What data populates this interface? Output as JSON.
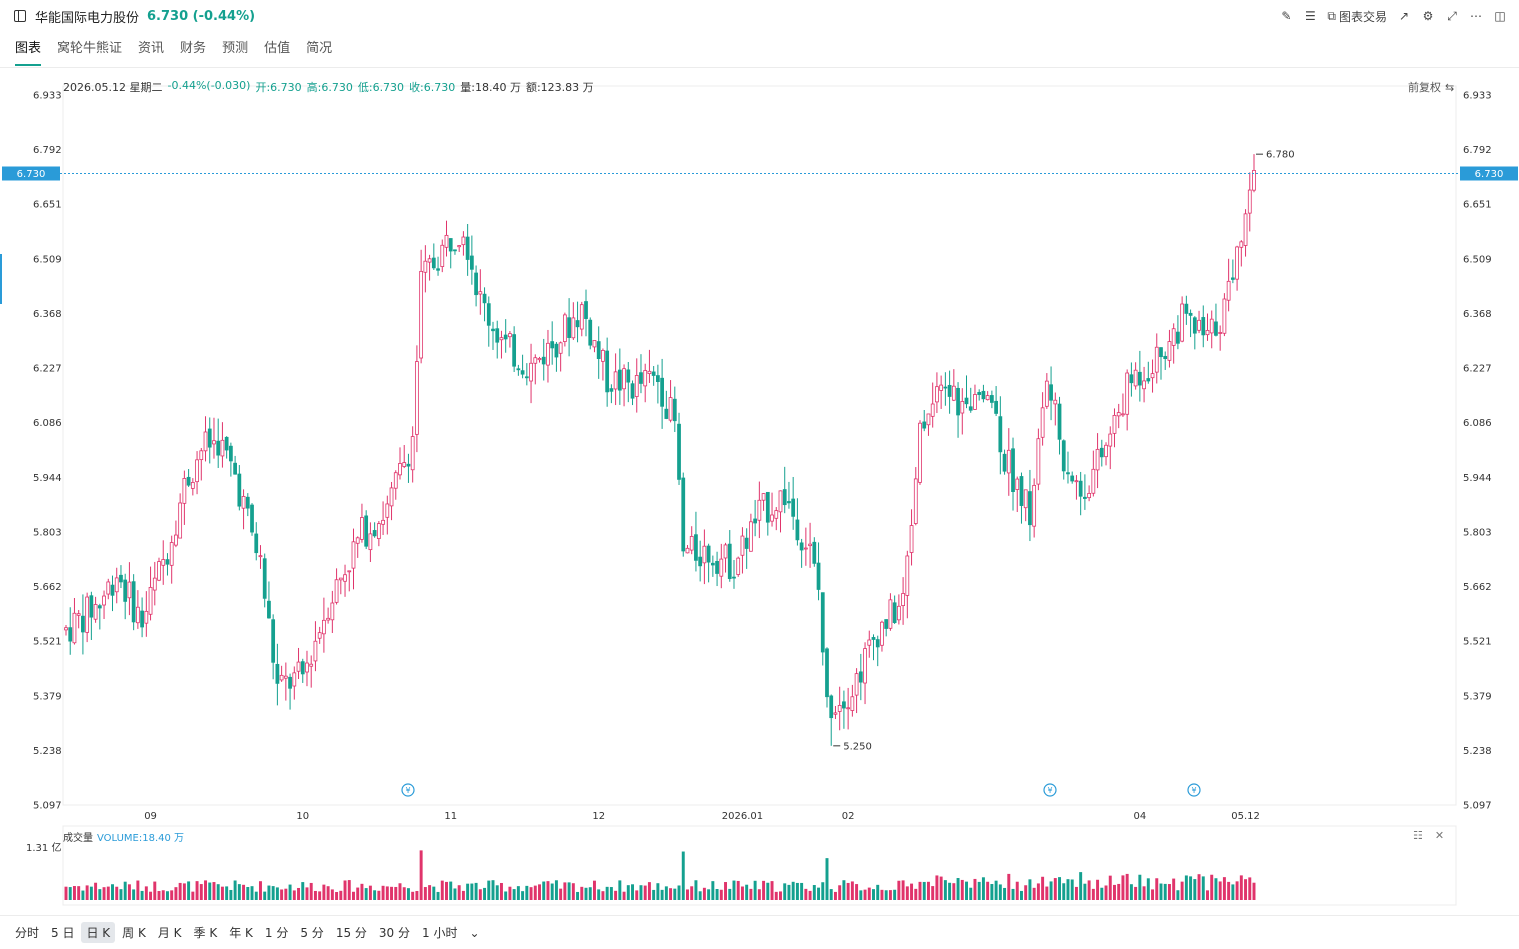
{
  "header": {
    "stock_name": "华能国际电力股份",
    "price_change": "6.730 (-0.44%)",
    "trade_label": "图表交易"
  },
  "tabs": [
    {
      "label": "图表"
    },
    {
      "label": "窝轮牛熊证"
    },
    {
      "label": "资讯"
    },
    {
      "label": "财务"
    },
    {
      "label": "预测"
    },
    {
      "label": "估值"
    },
    {
      "label": "简况"
    }
  ],
  "info": {
    "date": "2026.05.12 星期二",
    "change": "-0.44%(-0.030)",
    "open": "开:6.730",
    "high": "高:6.730",
    "low": "低:6.730",
    "close": "收:6.730",
    "volume": "量:18.40 万",
    "amount": "额:123.83 万"
  },
  "adjust_label": "前复权",
  "volume_panel": {
    "title": "成交量",
    "value": "VOLUME:18.40 万",
    "max_label": "1.31 亿"
  },
  "periods": [
    {
      "label": "分时"
    },
    {
      "label": "5 日"
    },
    {
      "label": "日 K",
      "active": true
    },
    {
      "label": "周 K"
    },
    {
      "label": "月 K"
    },
    {
      "label": "季 K"
    },
    {
      "label": "年 K"
    },
    {
      "label": "1 分"
    },
    {
      "label": "5 分"
    },
    {
      "label": "15 分"
    },
    {
      "label": "30 分"
    },
    {
      "label": "1 小时"
    }
  ],
  "colors": {
    "up": "#e0346b",
    "down": "#14a08f",
    "accent": "#2a9bd8"
  },
  "chart_data": {
    "type": "candlestick",
    "y_ticks": [
      "6.933",
      "6.792",
      "6.651",
      "6.509",
      "6.368",
      "6.227",
      "6.086",
      "5.944",
      "5.803",
      "5.662",
      "5.521",
      "5.379",
      "5.238",
      "5.097"
    ],
    "ylim": [
      5.097,
      6.933
    ],
    "x_ticks": [
      "09",
      "10",
      "11",
      "12",
      "2026.01",
      "02",
      "04",
      "05.12"
    ],
    "current_price": "6.730",
    "max_label": "6.780",
    "min_label": "5.250",
    "anchors": [
      [
        0,
        5.55
      ],
      [
        8,
        5.62
      ],
      [
        12,
        5.7
      ],
      [
        18,
        5.57
      ],
      [
        24,
        5.76
      ],
      [
        28,
        5.92
      ],
      [
        32,
        6.02
      ],
      [
        36,
        6.04
      ],
      [
        40,
        5.95
      ],
      [
        46,
        5.72
      ],
      [
        50,
        5.4
      ],
      [
        56,
        5.43
      ],
      [
        62,
        5.62
      ],
      [
        70,
        5.8
      ],
      [
        76,
        5.86
      ],
      [
        82,
        6.05
      ],
      [
        84,
        6.45
      ],
      [
        90,
        6.55
      ],
      [
        94,
        6.6
      ],
      [
        98,
        6.4
      ],
      [
        104,
        6.28
      ],
      [
        110,
        6.23
      ],
      [
        116,
        6.3
      ],
      [
        122,
        6.38
      ],
      [
        128,
        6.2
      ],
      [
        134,
        6.18
      ],
      [
        140,
        6.2
      ],
      [
        144,
        6.08
      ],
      [
        146,
        5.75
      ],
      [
        152,
        5.75
      ],
      [
        158,
        5.72
      ],
      [
        164,
        5.85
      ],
      [
        170,
        5.9
      ],
      [
        176,
        5.75
      ],
      [
        178,
        5.65
      ],
      [
        180,
        5.35
      ],
      [
        186,
        5.4
      ],
      [
        192,
        5.55
      ],
      [
        198,
        5.62
      ],
      [
        202,
        6.05
      ],
      [
        208,
        6.18
      ],
      [
        214,
        6.1
      ],
      [
        218,
        6.2
      ],
      [
        222,
        6.0
      ],
      [
        228,
        5.85
      ],
      [
        232,
        6.2
      ],
      [
        236,
        6.0
      ],
      [
        240,
        5.9
      ],
      [
        246,
        6.02
      ],
      [
        252,
        6.2
      ],
      [
        258,
        6.25
      ],
      [
        264,
        6.35
      ],
      [
        270,
        6.3
      ],
      [
        274,
        6.38
      ],
      [
        278,
        6.58
      ],
      [
        280,
        6.7
      ],
      [
        281,
        6.73
      ]
    ]
  }
}
